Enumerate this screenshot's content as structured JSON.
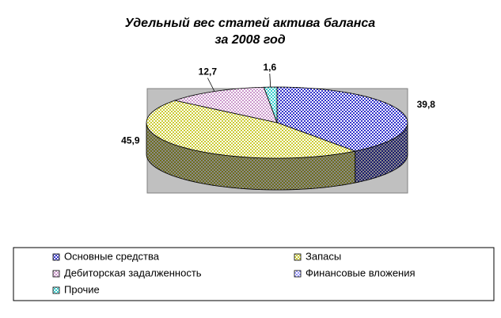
{
  "chart_data": {
    "type": "pie3d",
    "title": [
      "Удельный вес статей актива баланса",
      "за 2008 год"
    ],
    "categories": [
      "Основные средства",
      "Запасы",
      "Дебиторская задалженность",
      "Финансовые вложения",
      "Прочие"
    ],
    "values": [
      39.8,
      45.9,
      12.7,
      0,
      1.6
    ],
    "value_labels": [
      "39,8",
      "45,9",
      "12,7",
      null,
      "1,6"
    ],
    "colors": [
      "#3333cc",
      "#cccc33",
      "#cc99cc",
      "#9999ff",
      "#33cccc"
    ],
    "legend": "bottom"
  }
}
